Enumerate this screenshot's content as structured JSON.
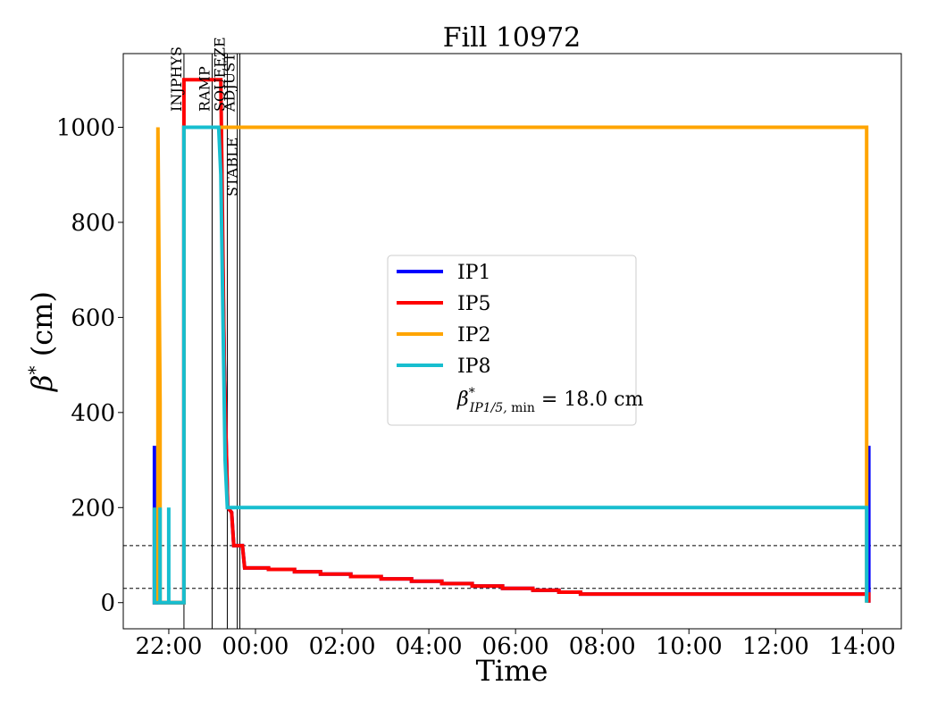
{
  "chart_data": {
    "type": "line",
    "title": "Fill 10972",
    "xlabel": "Time",
    "ylabel": "β* (cm)",
    "x_unit": "hours from 00:00",
    "xlim": [
      -3.05,
      14.9
    ],
    "ylim": [
      -55,
      1155
    ],
    "x_ticks": [
      {
        "x": -2.0,
        "label": "22:00"
      },
      {
        "x": 0.0,
        "label": "00:00"
      },
      {
        "x": 2.0,
        "label": "02:00"
      },
      {
        "x": 4.0,
        "label": "04:00"
      },
      {
        "x": 6.0,
        "label": "06:00"
      },
      {
        "x": 8.0,
        "label": "08:00"
      },
      {
        "x": 10.0,
        "label": "10:00"
      },
      {
        "x": 12.0,
        "label": "12:00"
      },
      {
        "x": 14.0,
        "label": "14:00"
      }
    ],
    "y_ticks": [
      0,
      200,
      400,
      600,
      800,
      1000
    ],
    "grid": false,
    "legend_position": "center",
    "legend_extra": "β*_IP1/5, min = 18.0 cm",
    "reference_lines": [
      30,
      120
    ],
    "phase_markers": [
      {
        "x": -1.65,
        "label": "INJPHYS"
      },
      {
        "x": -1.0,
        "label": "RAMP"
      },
      {
        "x": -0.65,
        "label": "SQUEEZE"
      },
      {
        "x": -0.42,
        "label": "ADJUST"
      },
      {
        "x": -0.36,
        "label": "STABLE"
      }
    ],
    "series": [
      {
        "name": "IP1",
        "color": "#0000ff",
        "points": [
          [
            -2.33,
            0
          ],
          [
            -2.33,
            330
          ],
          [
            -2.33,
            0
          ],
          [
            -2.25,
            0
          ],
          [
            -1.65,
            0
          ],
          [
            -1.65,
            1000
          ],
          [
            -0.8,
            1000
          ],
          [
            -0.72,
            500
          ],
          [
            -0.64,
            200
          ],
          [
            -0.55,
            190
          ],
          [
            -0.5,
            120
          ],
          [
            -0.3,
            120
          ],
          [
            -0.25,
            73
          ],
          [
            0.3,
            73
          ],
          [
            0.3,
            70
          ],
          [
            0.9,
            70
          ],
          [
            0.9,
            65
          ],
          [
            1.5,
            65
          ],
          [
            1.5,
            60
          ],
          [
            2.2,
            60
          ],
          [
            2.2,
            55
          ],
          [
            2.9,
            55
          ],
          [
            2.9,
            50
          ],
          [
            3.6,
            50
          ],
          [
            3.6,
            45
          ],
          [
            4.3,
            45
          ],
          [
            4.3,
            40
          ],
          [
            5.0,
            40
          ],
          [
            5.0,
            35
          ],
          [
            5.7,
            35
          ],
          [
            5.7,
            30
          ],
          [
            6.4,
            30
          ],
          [
            6.4,
            26
          ],
          [
            7.0,
            26
          ],
          [
            7.0,
            22
          ],
          [
            7.5,
            22
          ],
          [
            7.5,
            18
          ],
          [
            14.15,
            18
          ],
          [
            14.15,
            330
          ],
          [
            14.15,
            0
          ]
        ]
      },
      {
        "name": "IP5",
        "color": "#ff0000",
        "points": [
          [
            -2.33,
            0
          ],
          [
            -2.33,
            200
          ],
          [
            -2.33,
            0
          ],
          [
            -2.25,
            0
          ],
          [
            -1.65,
            0
          ],
          [
            -1.65,
            1100
          ],
          [
            -0.8,
            1100
          ],
          [
            -0.72,
            500
          ],
          [
            -0.64,
            200
          ],
          [
            -0.55,
            190
          ],
          [
            -0.5,
            120
          ],
          [
            -0.3,
            120
          ],
          [
            -0.25,
            73
          ],
          [
            0.3,
            73
          ],
          [
            0.3,
            70
          ],
          [
            0.9,
            70
          ],
          [
            0.9,
            65
          ],
          [
            1.5,
            65
          ],
          [
            1.5,
            60
          ],
          [
            2.2,
            60
          ],
          [
            2.2,
            55
          ],
          [
            2.9,
            55
          ],
          [
            2.9,
            50
          ],
          [
            3.6,
            50
          ],
          [
            3.6,
            45
          ],
          [
            4.3,
            45
          ],
          [
            4.3,
            40
          ],
          [
            5.0,
            40
          ],
          [
            5.0,
            35
          ],
          [
            5.7,
            35
          ],
          [
            5.7,
            30
          ],
          [
            6.4,
            30
          ],
          [
            6.4,
            26
          ],
          [
            7.0,
            26
          ],
          [
            7.0,
            22
          ],
          [
            7.5,
            22
          ],
          [
            7.5,
            18
          ],
          [
            14.15,
            18
          ],
          [
            14.15,
            0
          ]
        ]
      },
      {
        "name": "IP2",
        "color": "#ffa500",
        "points": [
          [
            -2.25,
            0
          ],
          [
            -2.25,
            1000
          ],
          [
            -2.2,
            420
          ],
          [
            -2.2,
            0
          ],
          [
            -1.65,
            0
          ],
          [
            -1.65,
            1000
          ],
          [
            14.1,
            1000
          ],
          [
            14.1,
            0
          ]
        ]
      },
      {
        "name": "IP8",
        "color": "#17becf",
        "points": [
          [
            -2.33,
            0
          ],
          [
            -2.33,
            200
          ],
          [
            -2.33,
            0
          ],
          [
            -2.2,
            0
          ],
          [
            -2.2,
            200
          ],
          [
            -2.2,
            0
          ],
          [
            -2.0,
            0
          ],
          [
            -2.0,
            200
          ],
          [
            -2.0,
            0
          ],
          [
            -1.65,
            0
          ],
          [
            -1.65,
            1000
          ],
          [
            -0.85,
            1000
          ],
          [
            -0.8,
            900
          ],
          [
            -0.7,
            300
          ],
          [
            -0.65,
            200
          ],
          [
            14.1,
            200
          ],
          [
            14.1,
            0
          ]
        ]
      }
    ]
  }
}
